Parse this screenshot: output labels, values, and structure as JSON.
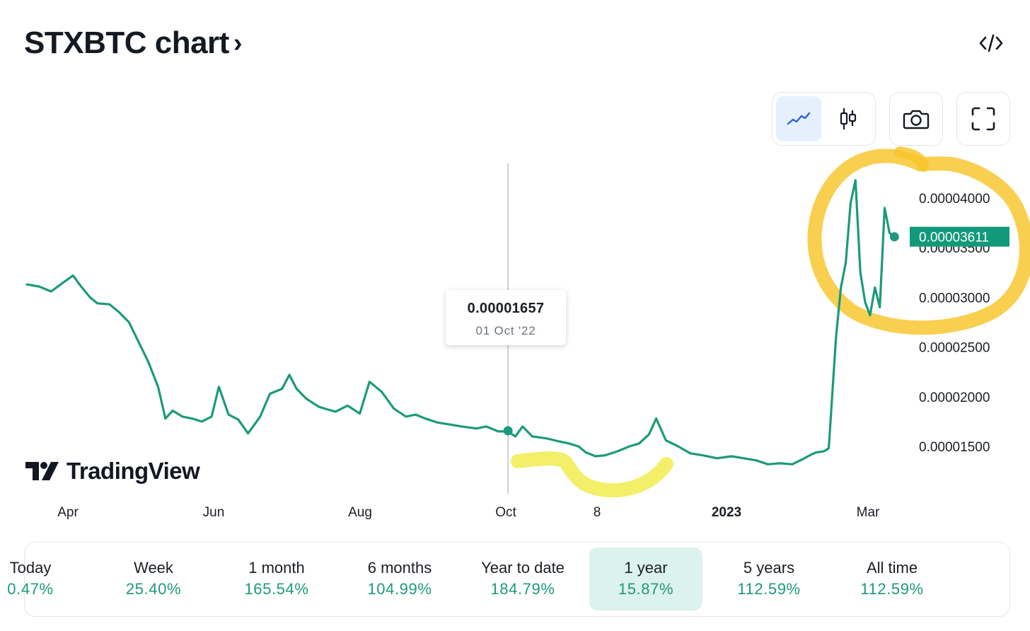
{
  "header": {
    "title": "STXBTC chart",
    "title_chevron": "›",
    "embed_icon": "code-icon"
  },
  "toolbar": {
    "line_icon": "line-chart-icon",
    "candle_icon": "candlestick-icon",
    "camera_icon": "camera-icon",
    "fullscreen_icon": "fullscreen-icon",
    "active": "line"
  },
  "tooltip": {
    "value": "0.00001657",
    "date": "01 Oct '22"
  },
  "branding": {
    "name": "TradingView"
  },
  "chart_data": {
    "type": "line",
    "title": "",
    "xlabel": "",
    "ylabel": "",
    "x_ticks": [
      "Apr",
      "Jun",
      "Aug",
      "Oct",
      "8",
      "2023",
      "Mar"
    ],
    "x_ticks_bold": [
      "2023"
    ],
    "y_ticks": [
      "0.00004000",
      "0.00003500",
      "0.00003000",
      "0.00002500",
      "0.00002000",
      "0.00001500"
    ],
    "ylim": [
      1.25e-05,
      4.35e-05
    ],
    "xlim": [
      "2022-03-17",
      "2023-03-13"
    ],
    "grid": false,
    "last_price": "0.00003611",
    "crosshair": {
      "x": "2022-10-01",
      "y": 1.657e-05
    },
    "line_color": "#1c9a7b",
    "price_label_color": "#12997a",
    "annotations": [
      {
        "type": "hand-drawn-circle",
        "color": "#f8c52a",
        "around": "2023 spike"
      },
      {
        "type": "hand-drawn-underline",
        "color": "#f0eb3d",
        "around": "Oct–Nov low"
      }
    ],
    "series": [
      {
        "x": [
          "2022-03-17",
          "2022-03-22",
          "2022-03-27",
          "2022-04-01",
          "2022-04-05",
          "2022-04-08",
          "2022-04-12",
          "2022-04-15",
          "2022-04-20",
          "2022-04-24",
          "2022-04-28",
          "2022-05-02",
          "2022-05-06",
          "2022-05-10",
          "2022-05-13",
          "2022-05-16",
          "2022-05-20",
          "2022-05-24",
          "2022-05-28",
          "2022-06-01",
          "2022-06-04",
          "2022-06-08",
          "2022-06-12",
          "2022-06-16",
          "2022-06-21",
          "2022-06-25",
          "2022-06-30",
          "2022-07-03",
          "2022-07-06",
          "2022-07-10",
          "2022-07-15",
          "2022-07-19",
          "2022-07-22",
          "2022-07-27",
          "2022-08-01",
          "2022-08-05",
          "2022-08-10",
          "2022-08-15",
          "2022-08-20",
          "2022-08-24",
          "2022-08-28",
          "2022-09-02",
          "2022-09-07",
          "2022-09-12",
          "2022-09-18",
          "2022-09-22",
          "2022-09-27",
          "2022-10-01",
          "2022-10-04",
          "2022-10-07",
          "2022-10-11",
          "2022-10-17",
          "2022-10-22",
          "2022-10-26",
          "2022-10-30",
          "2022-11-02",
          "2022-11-06",
          "2022-11-10",
          "2022-11-15",
          "2022-11-20",
          "2022-11-24",
          "2022-11-28",
          "2022-12-01",
          "2022-12-05",
          "2022-12-10",
          "2022-12-15",
          "2022-12-20",
          "2022-12-26",
          "2023-01-01",
          "2023-01-06",
          "2023-01-11",
          "2023-01-16",
          "2023-01-21",
          "2023-01-26",
          "2023-01-31",
          "2023-02-03",
          "2023-02-05",
          "2023-02-08",
          "2023-02-10",
          "2023-02-13",
          "2023-02-15",
          "2023-02-17",
          "2023-02-19",
          "2023-02-21",
          "2023-02-23",
          "2023-02-25",
          "2023-02-27",
          "2023-03-01",
          "2023-03-03",
          "2023-03-05",
          "2023-03-07",
          "2023-03-09"
        ],
        "y": [
          3.13e-05,
          3.11e-05,
          3.06e-05,
          3.15e-05,
          3.22e-05,
          3.12e-05,
          3e-05,
          2.94e-05,
          2.93e-05,
          2.85e-05,
          2.75e-05,
          2.55e-05,
          2.35e-05,
          2.1e-05,
          1.78e-05,
          1.86e-05,
          1.8e-05,
          1.78e-05,
          1.75e-05,
          1.8e-05,
          2.1e-05,
          1.82e-05,
          1.77e-05,
          1.63e-05,
          1.8e-05,
          2.03e-05,
          2.08e-05,
          2.22e-05,
          2.08e-05,
          1.98e-05,
          1.9e-05,
          1.87e-05,
          1.85e-05,
          1.91e-05,
          1.83e-05,
          2.15e-05,
          2.05e-05,
          1.88e-05,
          1.8e-05,
          1.82e-05,
          1.78e-05,
          1.74e-05,
          1.72e-05,
          1.7e-05,
          1.68e-05,
          1.7e-05,
          1.65e-05,
          1.65e-05,
          1.6e-05,
          1.7e-05,
          1.6e-05,
          1.58e-05,
          1.55e-05,
          1.53e-05,
          1.5e-05,
          1.44e-05,
          1.4e-05,
          1.41e-05,
          1.45e-05,
          1.5e-05,
          1.53e-05,
          1.62e-05,
          1.78e-05,
          1.56e-05,
          1.5e-05,
          1.43e-05,
          1.41e-05,
          1.38e-05,
          1.4e-05,
          1.38e-05,
          1.36e-05,
          1.32e-05,
          1.33e-05,
          1.32e-05,
          1.38e-05,
          1.42e-05,
          1.44e-05,
          1.45e-05,
          1.48e-05,
          2.6e-05,
          3.1e-05,
          3.35e-05,
          3.95e-05,
          4.18e-05,
          3.25e-05,
          2.95e-05,
          2.82e-05,
          3.1e-05,
          2.9e-05,
          3.9e-05,
          3.65e-05,
          3.61e-05
        ]
      }
    ]
  },
  "periods": [
    {
      "label": "Today",
      "value": "0.47%"
    },
    {
      "label": "Week",
      "value": "25.40%"
    },
    {
      "label": "1 month",
      "value": "165.54%"
    },
    {
      "label": "6 months",
      "value": "104.99%"
    },
    {
      "label": "Year to date",
      "value": "184.79%"
    },
    {
      "label": "1 year",
      "value": "15.87%",
      "active": true
    },
    {
      "label": "5 years",
      "value": "112.59%"
    },
    {
      "label": "All time",
      "value": "112.59%"
    }
  ]
}
